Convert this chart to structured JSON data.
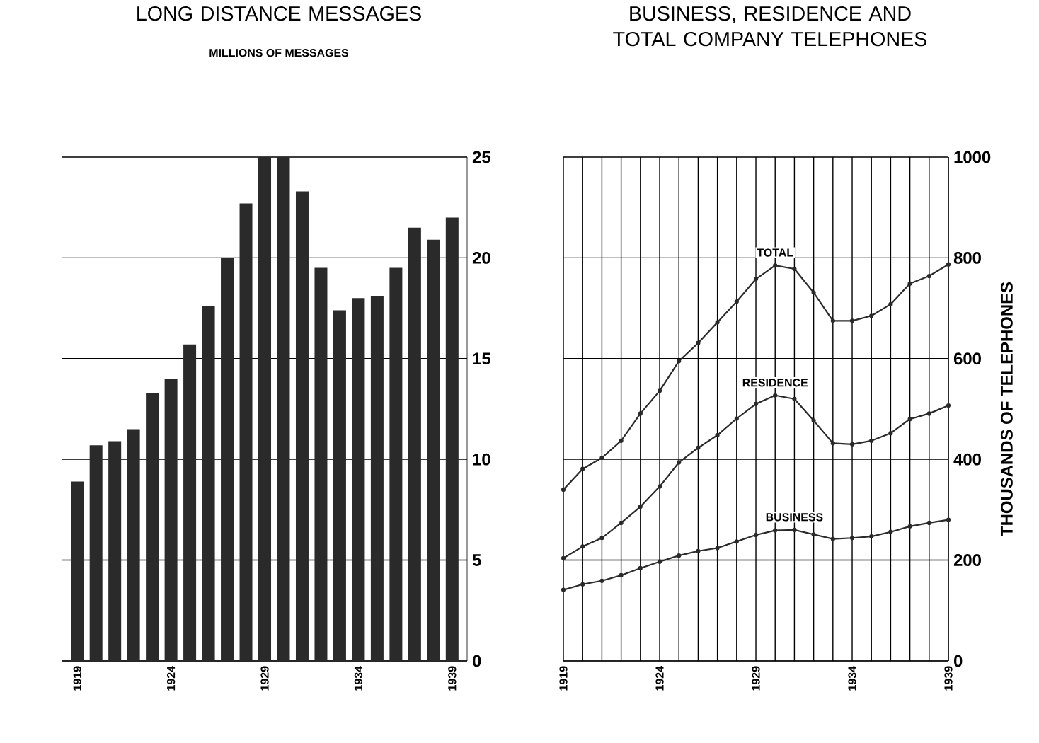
{
  "chart_data": [
    {
      "type": "bar",
      "title": "LONG DISTANCE MESSAGES",
      "subtitle": "MILLIONS OF MESSAGES",
      "categories": [
        "1919",
        null,
        null,
        null,
        null,
        "1924",
        null,
        null,
        null,
        null,
        "1929",
        null,
        null,
        null,
        null,
        "1934",
        null,
        null,
        null,
        null,
        "1939"
      ],
      "values": [
        8.9,
        10.7,
        10.9,
        11.5,
        13.3,
        14.0,
        15.7,
        17.6,
        20.0,
        22.7,
        25.0,
        25.0,
        23.3,
        19.5,
        17.4,
        18.0,
        18.1,
        19.5,
        21.5,
        20.9,
        22.0
      ],
      "color": "#2a2a2a",
      "ylim": [
        0,
        25
      ],
      "yticks": [
        0,
        5,
        10,
        15,
        20,
        25
      ],
      "grid": "y",
      "legend": false
    },
    {
      "type": "line",
      "title": "BUSINESS, RESIDENCE AND TOTAL COMPANY TELEPHONES",
      "ylabel": "THOUSANDS OF TELEPHONES",
      "x": [
        1919,
        1920,
        1921,
        1922,
        1923,
        1924,
        1925,
        1926,
        1927,
        1928,
        1929,
        1930,
        1931,
        1932,
        1933,
        1934,
        1935,
        1936,
        1937,
        1938,
        1939
      ],
      "series": [
        {
          "name": "TOTAL",
          "color": "#2a2a2a",
          "values": [
            340,
            381,
            403,
            437,
            491,
            536,
            595,
            631,
            672,
            713,
            758,
            785,
            778,
            731,
            675,
            675,
            685,
            708,
            749,
            764,
            787
          ]
        },
        {
          "name": "RESIDENCE",
          "color": "#2a2a2a",
          "values": [
            204,
            227,
            244,
            274,
            306,
            346,
            394,
            423,
            448,
            481,
            510,
            527,
            520,
            477,
            432,
            430,
            437,
            452,
            480,
            491,
            507
          ]
        },
        {
          "name": "BUSINESS",
          "color": "#2a2a2a",
          "values": [
            141,
            152,
            159,
            170,
            184,
            197,
            209,
            218,
            224,
            237,
            250,
            259,
            260,
            251,
            242,
            244,
            247,
            256,
            267,
            274,
            280
          ]
        }
      ],
      "xlim": [
        1919,
        1939
      ],
      "xticks": [
        1919,
        {
          "value": 1920,
          "label": null
        },
        {
          "value": 1921,
          "label": null
        },
        {
          "value": 1922,
          "label": null
        },
        {
          "value": 1923,
          "label": null
        },
        1924,
        {
          "value": 1925,
          "label": null
        },
        {
          "value": 1926,
          "label": null
        },
        {
          "value": 1927,
          "label": null
        },
        {
          "value": 1928,
          "label": null
        },
        1929,
        {
          "value": 1930,
          "label": null
        },
        {
          "value": 1931,
          "label": null
        },
        {
          "value": 1932,
          "label": null
        },
        {
          "value": 1933,
          "label": null
        },
        1934,
        {
          "value": 1935,
          "label": null
        },
        {
          "value": 1936,
          "label": null
        },
        {
          "value": 1937,
          "label": null
        },
        {
          "value": 1938,
          "label": null
        },
        1939
      ],
      "ylim": [
        0,
        1000
      ],
      "yticks": [
        0,
        200,
        400,
        600,
        800,
        1000
      ],
      "grid": true,
      "marker": "circle",
      "line_style": "solid",
      "legend": false
    }
  ]
}
